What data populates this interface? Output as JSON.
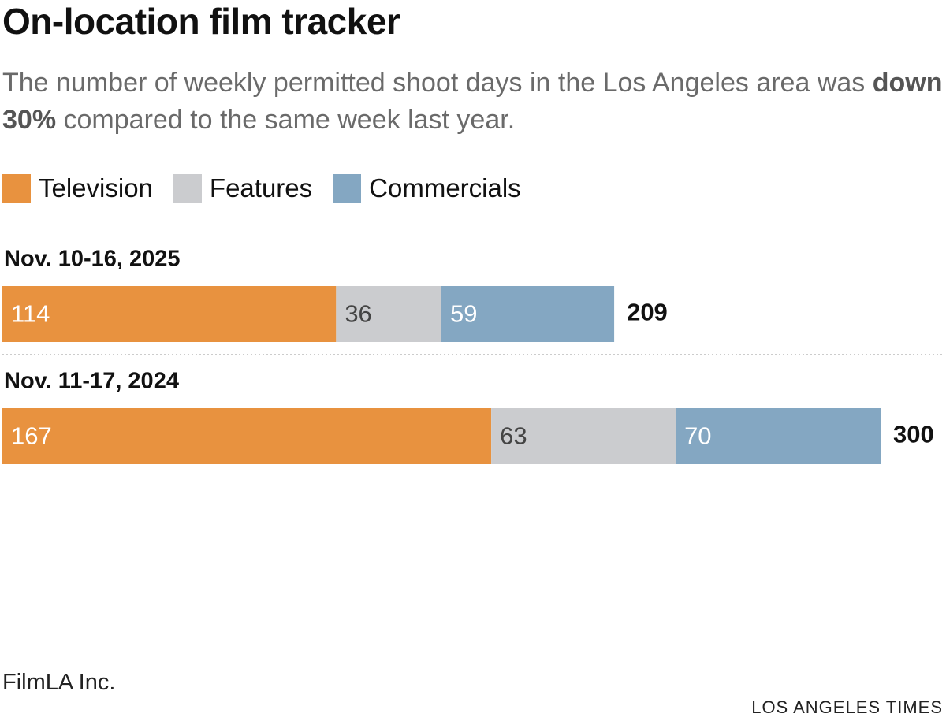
{
  "chart_data": {
    "type": "stacked-bar-horizontal",
    "title": "On-location film tracker",
    "subtitle": [
      "The number of weekly permitted shoot days in the Los Angeles area was",
      "down 30%",
      "compared to the same week last year."
    ],
    "categories": [
      "Nov. 10-16, 2025",
      "Nov. 11-17, 2024"
    ],
    "series": [
      {
        "name": "Television",
        "color": "#e8923f",
        "values": [
          114,
          167
        ]
      },
      {
        "name": "Features",
        "color": "#cbcccf",
        "values": [
          36,
          63
        ]
      },
      {
        "name": "Commercials",
        "color": "#84a7c2",
        "values": [
          59,
          70
        ]
      }
    ],
    "totals": [
      209,
      300
    ],
    "source": "FilmLA Inc.",
    "credit": "LOS ANGELES TIMES"
  }
}
